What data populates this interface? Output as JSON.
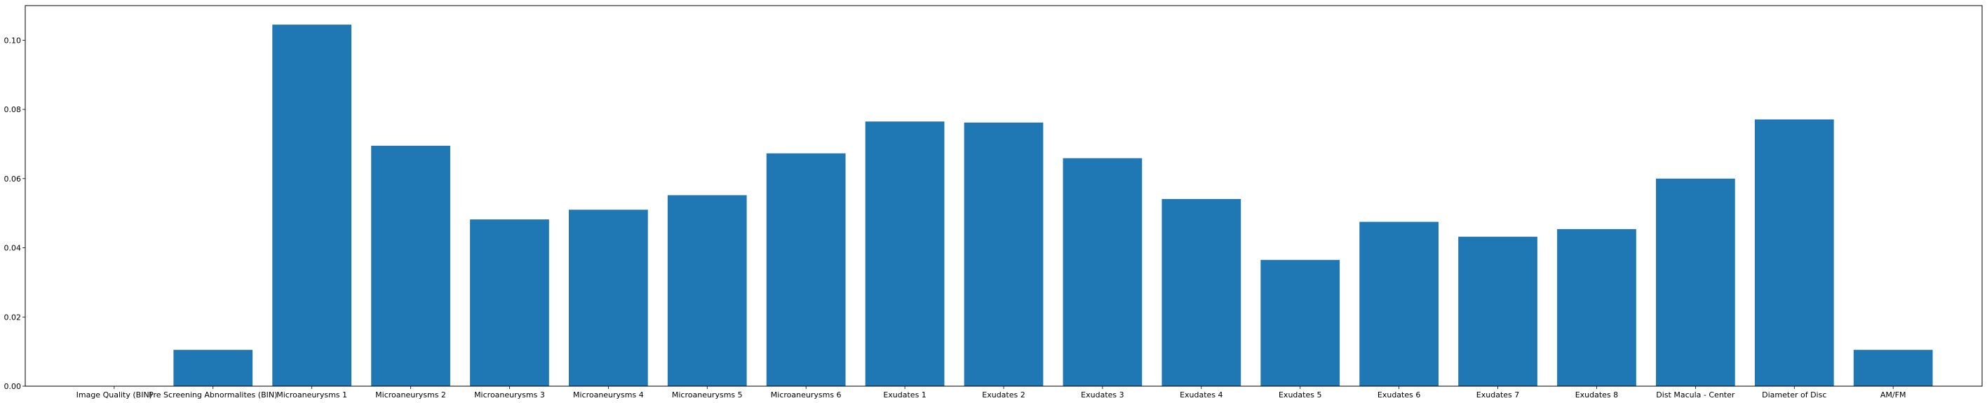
{
  "chart_data": {
    "type": "bar",
    "categories": [
      "Image Quality (BIN)",
      "Pre Screening Abnormalites (BIN)",
      "Microaneurysms 1",
      "Microaneurysms 2",
      "Microaneurysms 3",
      "Microaneurysms 4",
      "Microaneurysms 5",
      "Microaneurysms 6",
      "Exudates 1",
      "Exudates 2",
      "Exudates 3",
      "Exudates 4",
      "Exudates 5",
      "Exudates 6",
      "Exudates 7",
      "Exudates 8",
      "Dist Macula - Center",
      "Diameter of Disc",
      "AM/FM"
    ],
    "values": [
      0.0,
      0.0105,
      0.1045,
      0.0695,
      0.0482,
      0.051,
      0.0552,
      0.0673,
      0.0765,
      0.0762,
      0.0659,
      0.0541,
      0.0365,
      0.0475,
      0.0432,
      0.0454,
      0.06,
      0.0771,
      0.0105
    ],
    "yticks": [
      "0.00",
      "0.02",
      "0.04",
      "0.06",
      "0.08",
      "0.10"
    ],
    "ylim": [
      0,
      0.11
    ],
    "title": "",
    "xlabel": "",
    "ylabel": "",
    "grid": false,
    "bar_color": "#1f77b4"
  }
}
